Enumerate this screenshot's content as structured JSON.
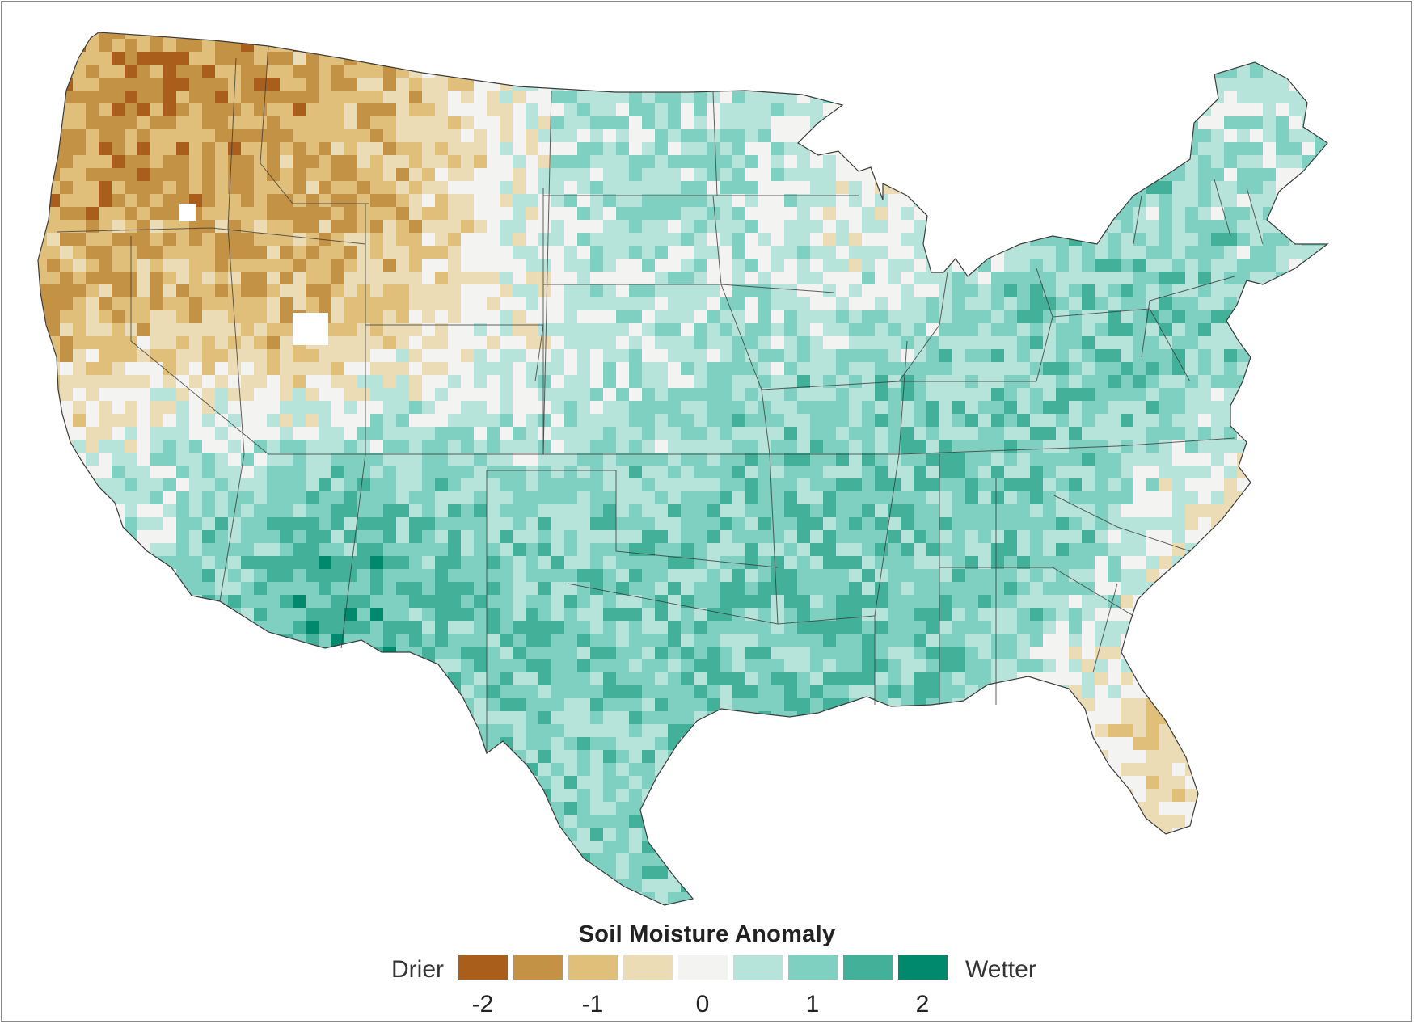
{
  "legend": {
    "title": "Soil Moisture Anomaly",
    "low_label": "Drier",
    "high_label": "Wetter",
    "bins": [
      {
        "value": -2.0,
        "color": "#a95f1b"
      },
      {
        "value": -1.5,
        "color": "#c49245"
      },
      {
        "value": -1.0,
        "color": "#e0bf7a"
      },
      {
        "value": -0.5,
        "color": "#ecdcb5"
      },
      {
        "value": 0.0,
        "color": "#f3f3f2"
      },
      {
        "value": 0.5,
        "color": "#b6e3da"
      },
      {
        "value": 1.0,
        "color": "#7fd0c1"
      },
      {
        "value": 1.5,
        "color": "#43b09a"
      },
      {
        "value": 2.0,
        "color": "#00896c"
      }
    ],
    "tick_labels": [
      {
        "text": "-2",
        "value": -2
      },
      {
        "text": "-1",
        "value": -1
      },
      {
        "text": "0",
        "value": 0
      },
      {
        "text": "1",
        "value": 1
      },
      {
        "text": "2",
        "value": 2
      }
    ]
  },
  "map": {
    "region": "Contiguous United States",
    "variable": "soil moisture anomaly",
    "no_data_color": "#ffffff",
    "border_color": "#3a3a3a"
  }
}
